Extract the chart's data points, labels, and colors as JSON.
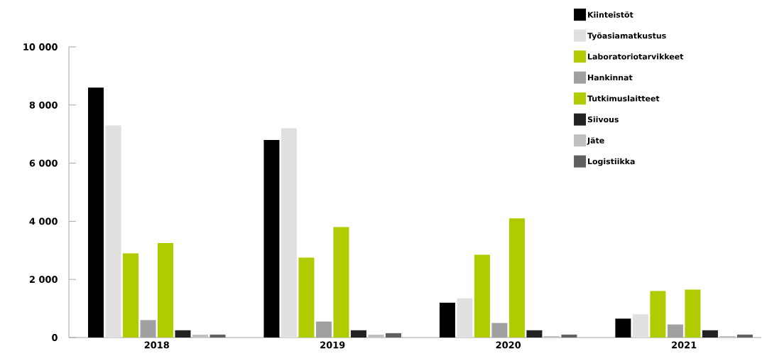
{
  "chart_data": {
    "type": "bar",
    "categories": [
      "2018",
      "2019",
      "2020",
      "2021"
    ],
    "series": [
      {
        "name": "Kiinteistöt",
        "color": "#000000",
        "values": [
          8600,
          6800,
          1200,
          650
        ]
      },
      {
        "name": "Työasiamatkustus",
        "color": "#e0e0e0",
        "values": [
          7300,
          7200,
          1350,
          800
        ]
      },
      {
        "name": "Laboratoriotarvikkeet",
        "color": "#b0cb00",
        "values": [
          2900,
          2750,
          2850,
          1600
        ]
      },
      {
        "name": "Hankinnat",
        "color": "#a0a0a0",
        "values": [
          600,
          550,
          500,
          450
        ]
      },
      {
        "name": "Tutkimuslaitteet",
        "color": "#b0cb00",
        "values": [
          3250,
          3800,
          4100,
          1650
        ]
      },
      {
        "name": "Siivous",
        "color": "#222222",
        "values": [
          250,
          250,
          250,
          250
        ]
      },
      {
        "name": "Jäte",
        "color": "#c0c0c0",
        "values": [
          100,
          100,
          50,
          50
        ]
      },
      {
        "name": "Logistiikka",
        "color": "#606060",
        "values": [
          100,
          150,
          100,
          100
        ]
      }
    ],
    "ylim": [
      0,
      10000
    ],
    "yticks": [
      0,
      {
        "value": 2000,
        "label": "2 000"
      },
      {
        "value": 4000,
        "label": "4 000"
      },
      {
        "value": 6000,
        "label": "6 000"
      },
      {
        "value": 8000,
        "label": "8 000"
      },
      {
        "value": 10000,
        "label": "10 000"
      }
    ],
    "grid": false,
    "legend": "top right"
  }
}
